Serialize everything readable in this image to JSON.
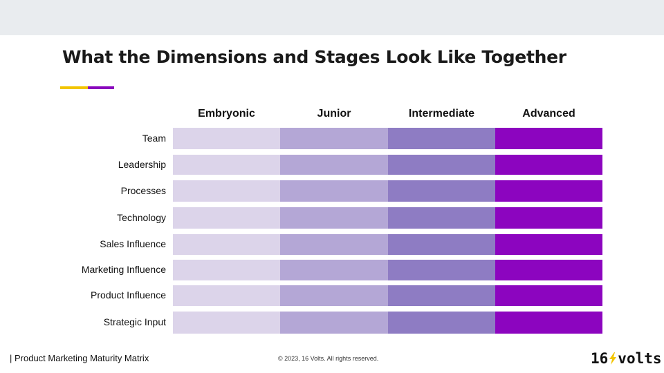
{
  "title": "What the Dimensions and Stages Look Like Together",
  "colors": {
    "topbar": "#e9ecef",
    "accent_yellow": "#f2c500",
    "accent_purple": "#8a06bd",
    "stage_colors": [
      "#dcd4ea",
      "#b4a7d6",
      "#8e7cc3",
      "#8c05bf"
    ]
  },
  "stages": [
    "Embryonic",
    "Junior",
    "Intermediate",
    "Advanced"
  ],
  "dimensions": [
    "Team",
    "Leadership",
    "Processes",
    "Technology",
    "Sales Influence",
    "Marketing Influence",
    "Product Influence",
    "Strategic Input"
  ],
  "footer": {
    "left": "| Product Marketing Maturity Matrix",
    "center": "© 2023, 16 Volts. All rights reserved."
  },
  "logo": {
    "left": "16",
    "right": "volts",
    "icon": "lightning-bolt-icon"
  }
}
